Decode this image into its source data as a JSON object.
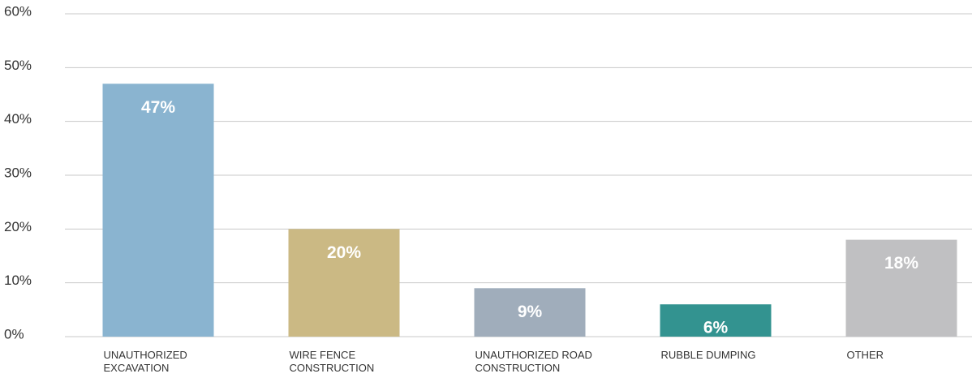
{
  "chart_data": {
    "type": "bar",
    "categories": [
      "UNAUTHORIZED EXCAVATION",
      "WIRE FENCE CONSTRUCTION",
      "UNAUTHORIZED ROAD CONSTRUCTION",
      "RUBBLE DUMPING",
      "OTHER"
    ],
    "values": [
      47,
      20,
      9,
      6,
      18
    ],
    "value_labels": [
      "47%",
      "20%",
      "9%",
      "6%",
      "18%"
    ],
    "colors": [
      "#8ab4d0",
      "#cbb984",
      "#a0adbb",
      "#339390",
      "#c0c0c2"
    ],
    "ylim": [
      0,
      60
    ],
    "yticks": [
      {
        "value": 0,
        "label": "0%"
      },
      {
        "value": 10,
        "label": "10%"
      },
      {
        "value": 20,
        "label": "20%"
      },
      {
        "value": 30,
        "label": "30%"
      },
      {
        "value": 40,
        "label": "40%"
      },
      {
        "value": 50,
        "label": "50%"
      },
      {
        "value": 60,
        "label": "60%"
      }
    ],
    "grid": true
  }
}
